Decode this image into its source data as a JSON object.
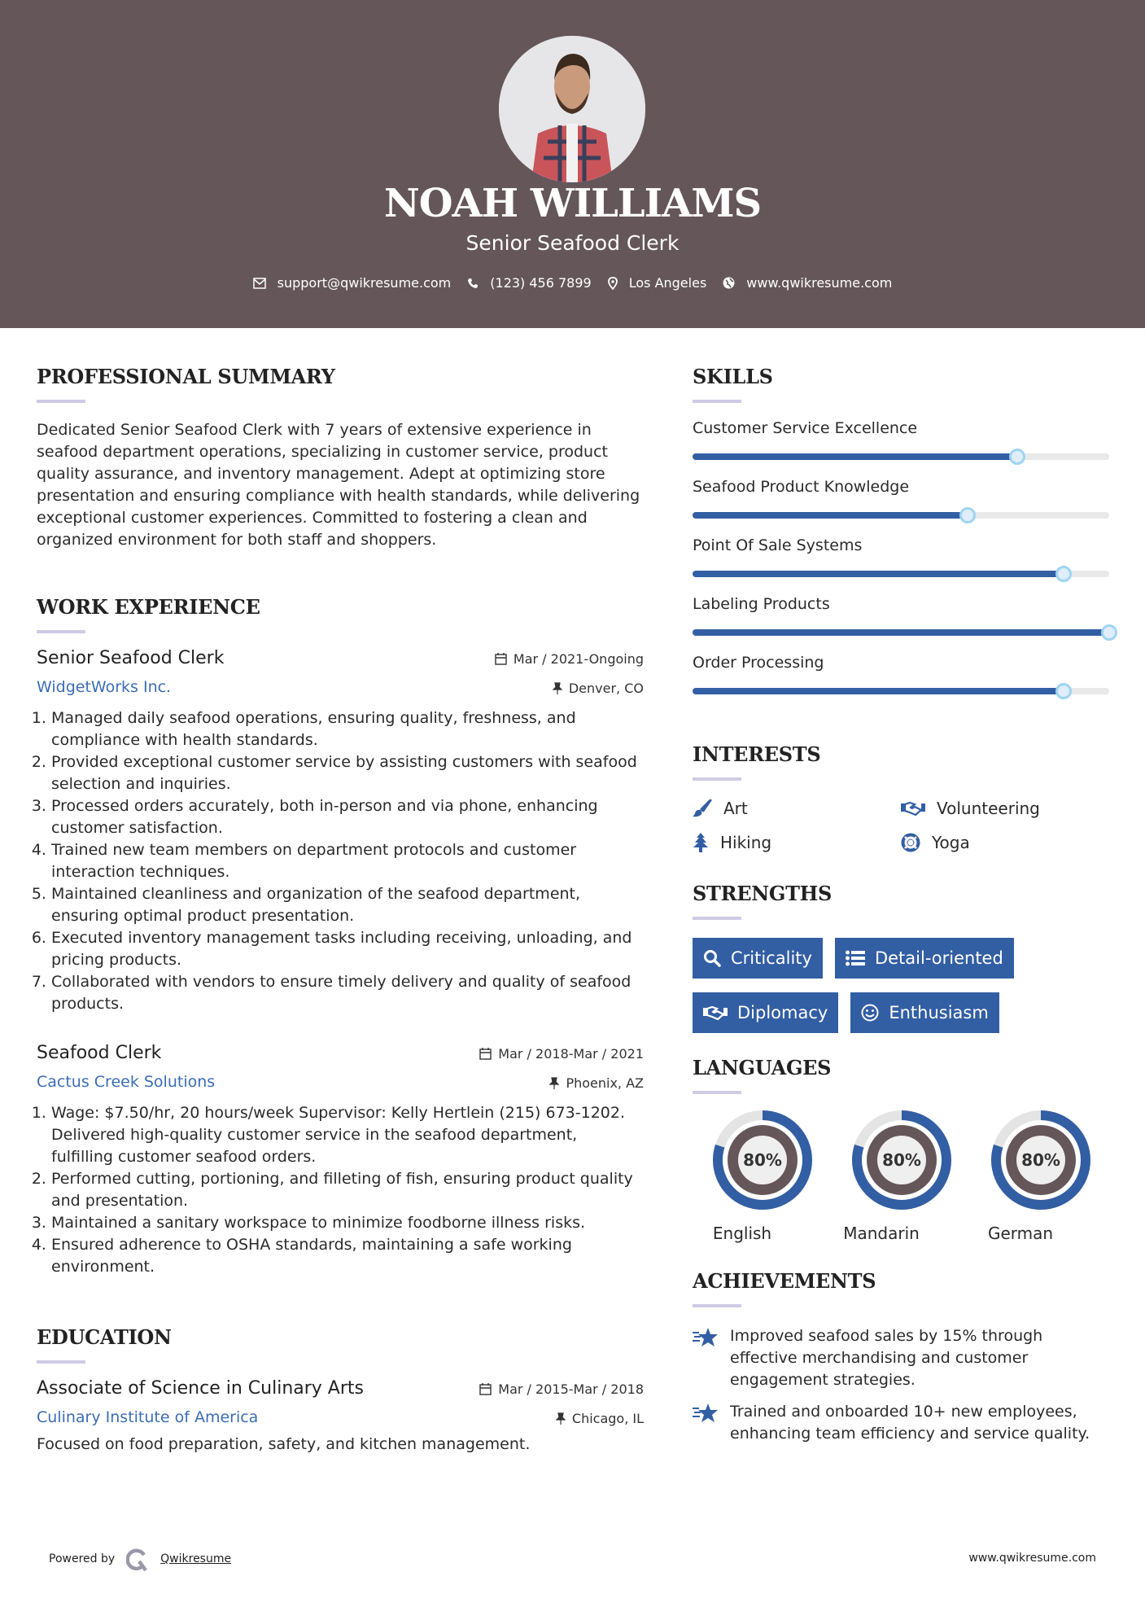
{
  "header": {
    "name": "NOAH WILLIAMS",
    "title": "Senior Seafood Clerk",
    "contacts": [
      {
        "icon": "envelope-icon",
        "text": "support@qwikresume.com"
      },
      {
        "icon": "phone-icon",
        "text": "(123) 456 7899"
      },
      {
        "icon": "map-pin-icon",
        "text": "Los Angeles"
      },
      {
        "icon": "globe-icon",
        "text": "www.qwikresume.com"
      }
    ]
  },
  "colors": {
    "header_bg": "#655659",
    "accent": "#325ea3",
    "link": "#3b6db5"
  },
  "summary": {
    "title": "PROFESSIONAL SUMMARY",
    "text": "Dedicated Senior Seafood Clerk with 7 years of extensive experience in seafood department operations, specializing in customer service, product quality assurance, and inventory management. Adept at optimizing store presentation and ensuring compliance with health standards, while delivering exceptional customer experiences. Committed to fostering a clean and organized environment for both staff and shoppers."
  },
  "experience": {
    "title": "WORK EXPERIENCE",
    "jobs": [
      {
        "title": "Senior Seafood Clerk",
        "date": "Mar / 2021-Ongoing",
        "company": "WidgetWorks Inc.",
        "location": "Denver, CO",
        "items": [
          "Managed daily seafood operations, ensuring quality, freshness, and compliance with health standards.",
          "Provided exceptional customer service by assisting customers with seafood selection and inquiries.",
          "Processed orders accurately, both in-person and via phone, enhancing customer satisfaction.",
          "Trained new team members on department protocols and customer interaction techniques.",
          "Maintained cleanliness and organization of the seafood department, ensuring optimal product presentation.",
          "Executed inventory management tasks including receiving, unloading, and pricing products.",
          "Collaborated with vendors to ensure timely delivery and quality of seafood products."
        ]
      },
      {
        "title": "Seafood Clerk",
        "date": "Mar / 2018-Mar / 2021",
        "company": "Cactus Creek Solutions",
        "location": "Phoenix, AZ",
        "items": [
          "Wage: $7.50/hr, 20 hours/week Supervisor: Kelly Hertlein (215) 673-1202. Delivered high-quality customer service in the seafood department, fulfilling customer seafood orders.",
          "Performed cutting, portioning, and filleting of fish, ensuring product quality and presentation.",
          "Maintained a sanitary workspace to minimize foodborne illness risks.",
          "Ensured adherence to OSHA standards, maintaining a safe working environment."
        ]
      }
    ]
  },
  "education": {
    "title": "EDUCATION",
    "degree": "Associate of Science in Culinary Arts",
    "date": "Mar / 2015-Mar / 2018",
    "school": "Culinary Institute of America",
    "location": "Chicago, IL",
    "description": "Focused on food preparation, safety, and kitchen management."
  },
  "skills": {
    "title": "SKILLS",
    "items": [
      {
        "name": "Customer Service Excellence",
        "level": 78
      },
      {
        "name": "Seafood Product Knowledge",
        "level": 66
      },
      {
        "name": "Point Of Sale Systems",
        "level": 89
      },
      {
        "name": "Labeling Products",
        "level": 100
      },
      {
        "name": "Order Processing",
        "level": 89
      }
    ]
  },
  "interests": {
    "title": "INTERESTS",
    "items": [
      {
        "icon": "paintbrush-icon",
        "label": "Art"
      },
      {
        "icon": "handshake-icon",
        "label": "Volunteering"
      },
      {
        "icon": "tree-icon",
        "label": "Hiking"
      },
      {
        "icon": "life-ring-icon",
        "label": "Yoga"
      }
    ]
  },
  "strengths": {
    "title": "STRENGTHS",
    "items": [
      {
        "icon": "search-icon",
        "label": "Criticality"
      },
      {
        "icon": "list-icon",
        "label": "Detail-oriented"
      },
      {
        "icon": "handshake-icon",
        "label": "Diplomacy"
      },
      {
        "icon": "smile-icon",
        "label": "Enthusiasm"
      }
    ]
  },
  "languages": {
    "title": "LANGUAGES",
    "items": [
      {
        "name": "English",
        "level": 80,
        "label": "80%"
      },
      {
        "name": "Mandarin",
        "level": 80,
        "label": "80%"
      },
      {
        "name": "German",
        "level": 80,
        "label": "80%"
      }
    ]
  },
  "achievements": {
    "title": "ACHIEVEMENTS",
    "items": [
      "Improved seafood sales by 15% through effective merchandising and customer engagement strategies.",
      "Trained and onboarded 10+ new employees, enhancing team efficiency and service quality."
    ]
  },
  "footer": {
    "powered_by": "Powered by",
    "brand": "Qwikresume",
    "url": "www.qwikresume.com"
  }
}
